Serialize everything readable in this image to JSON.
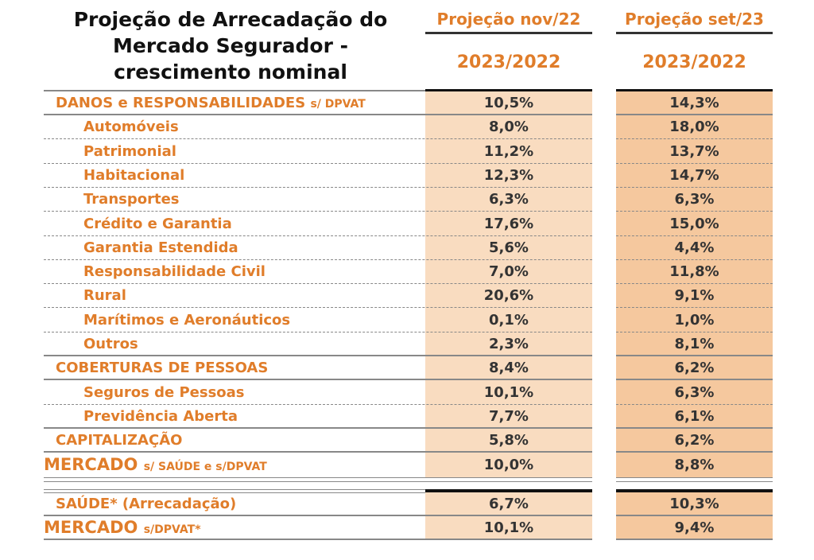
{
  "title": "Projeção de Arrecadação do Mercado Segurador - crescimento nominal",
  "title_lines": [
    "Projeção de Arrecadação do",
    "Mercado Segurador -",
    "crescimento nominal"
  ],
  "columns": [
    {
      "header": "Projeção nov/22",
      "subheader": "2023/2022"
    },
    {
      "header": "Projeção set/23",
      "subheader": "2023/2022"
    }
  ],
  "rows": [
    {
      "label": "DANOS e RESPONSABILIDADES",
      "suffix": "s/ DPVAT",
      "nov22": "10,5%",
      "set23": "14,3%"
    },
    {
      "label": "Automóveis",
      "nov22": "8,0%",
      "set23": "18,0%"
    },
    {
      "label": "Patrimonial",
      "nov22": "11,2%",
      "set23": "13,7%"
    },
    {
      "label": "Habitacional",
      "nov22": "12,3%",
      "set23": "14,7%"
    },
    {
      "label": "Transportes",
      "nov22": "6,3%",
      "set23": "6,3%"
    },
    {
      "label": "Crédito e Garantia",
      "nov22": "17,6%",
      "set23": "15,0%"
    },
    {
      "label": "Garantia Estendida",
      "nov22": "5,6%",
      "set23": "4,4%"
    },
    {
      "label": "Responsabilidade Civil",
      "nov22": "7,0%",
      "set23": "11,8%"
    },
    {
      "label": "Rural",
      "nov22": "20,6%",
      "set23": "9,1%"
    },
    {
      "label": "Marítimos e Aeronáuticos",
      "nov22": "0,1%",
      "set23": "1,0%"
    },
    {
      "label": "Outros",
      "nov22": "2,3%",
      "set23": "8,1%"
    },
    {
      "label": "COBERTURAS DE PESSOAS",
      "nov22": "8,4%",
      "set23": "6,2%"
    },
    {
      "label": "Seguros de Pessoas",
      "nov22": "10,1%",
      "set23": "6,3%"
    },
    {
      "label": "Previdência Aberta",
      "nov22": "7,7%",
      "set23": "6,1%"
    },
    {
      "label": "CAPITALIZAÇÃO",
      "nov22": "5,8%",
      "set23": "6,2%"
    },
    {
      "label": "MERCADO",
      "suffix": "s/ SAÚDE e s/DPVAT",
      "nov22": "10,0%",
      "set23": "8,8%"
    },
    {
      "label": "SAÚDE* (Arrecadação)",
      "nov22": "6,7%",
      "set23": "10,3%"
    },
    {
      "label": "MERCADO",
      "suffix": "s/DPVAT*",
      "nov22": "10,1%",
      "set23": "9,4%"
    }
  ]
}
